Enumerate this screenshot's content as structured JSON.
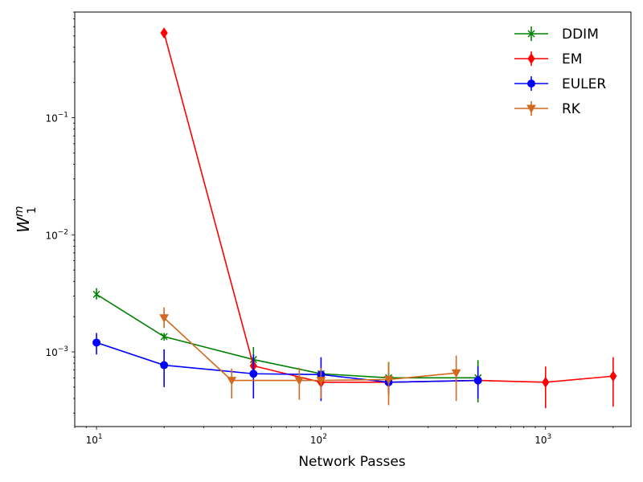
{
  "chart_data": {
    "type": "line",
    "xscale": "log",
    "yscale": "log",
    "xlabel": "Network Passes",
    "ylabel": "W",
    "ylabel_sup": "m",
    "ylabel_sub": "1",
    "xlim": [
      8,
      2400
    ],
    "ylim": [
      0.00023,
      0.8
    ],
    "x_ticks": [
      {
        "value": 10,
        "base": "10",
        "exp": "1"
      },
      {
        "value": 100,
        "base": "10",
        "exp": "2"
      },
      {
        "value": 1000,
        "base": "10",
        "exp": "3"
      }
    ],
    "y_ticks": [
      {
        "value": 0.001,
        "base": "10",
        "exp": "−3"
      },
      {
        "value": 0.01,
        "base": "10",
        "exp": "−2"
      },
      {
        "value": 0.1,
        "base": "10",
        "exp": "−1"
      }
    ],
    "legend_position": "top-right",
    "series": [
      {
        "name": "DDIM",
        "color": "#008000",
        "marker": "x",
        "points": [
          {
            "x": 10,
            "y": 0.0031,
            "lo": 0.0028,
            "hi": 0.0035
          },
          {
            "x": 20,
            "y": 0.00135,
            "lo": 0.00125,
            "hi": 0.00145
          },
          {
            "x": 50,
            "y": 0.00086,
            "lo": 0.00065,
            "hi": 0.0011
          },
          {
            "x": 100,
            "y": 0.00065,
            "lo": 0.0006,
            "hi": 0.0007
          },
          {
            "x": 200,
            "y": 0.0006,
            "lo": 0.00042,
            "hi": 0.00082
          },
          {
            "x": 500,
            "y": 0.0006,
            "lo": 0.00037,
            "hi": 0.00085
          }
        ]
      },
      {
        "name": "EM",
        "color": "#ff0000",
        "marker": "diamond",
        "points": [
          {
            "x": 20,
            "y": 0.53,
            "lo": 0.5,
            "hi": 0.56
          },
          {
            "x": 50,
            "y": 0.00076,
            "lo": 0.0007,
            "hi": 0.00082
          },
          {
            "x": 100,
            "y": 0.00055,
            "lo": 0.0005,
            "hi": 0.0006
          },
          {
            "x": 200,
            "y": 0.00055,
            "lo": 0.0005,
            "hi": 0.0006
          },
          {
            "x": 500,
            "y": 0.00057,
            "lo": 0.00052,
            "hi": 0.00062
          },
          {
            "x": 1000,
            "y": 0.00055,
            "lo": 0.00033,
            "hi": 0.00075
          },
          {
            "x": 2000,
            "y": 0.00062,
            "lo": 0.00034,
            "hi": 0.0009
          }
        ]
      },
      {
        "name": "EULER",
        "color": "#0000ff",
        "marker": "circle",
        "points": [
          {
            "x": 10,
            "y": 0.0012,
            "lo": 0.00095,
            "hi": 0.00145
          },
          {
            "x": 20,
            "y": 0.00077,
            "lo": 0.0005,
            "hi": 0.00105
          },
          {
            "x": 50,
            "y": 0.00065,
            "lo": 0.0004,
            "hi": 0.00095
          },
          {
            "x": 100,
            "y": 0.00064,
            "lo": 0.00038,
            "hi": 0.0009
          },
          {
            "x": 200,
            "y": 0.00055,
            "lo": 0.00045,
            "hi": 0.00065
          },
          {
            "x": 500,
            "y": 0.00057,
            "lo": 0.0004,
            "hi": 0.00075
          }
        ]
      },
      {
        "name": "RK",
        "color": "#d2691e",
        "marker": "triangle-down",
        "points": [
          {
            "x": 20,
            "y": 0.00195,
            "lo": 0.0016,
            "hi": 0.0024
          },
          {
            "x": 40,
            "y": 0.00057,
            "lo": 0.0004,
            "hi": 0.00072
          },
          {
            "x": 80,
            "y": 0.00057,
            "lo": 0.00039,
            "hi": 0.00073
          },
          {
            "x": 100,
            "y": 0.00057,
            "lo": 0.0004,
            "hi": 0.00073
          },
          {
            "x": 200,
            "y": 0.00058,
            "lo": 0.00035,
            "hi": 0.00082
          },
          {
            "x": 400,
            "y": 0.00066,
            "lo": 0.00038,
            "hi": 0.00093
          }
        ]
      }
    ]
  }
}
